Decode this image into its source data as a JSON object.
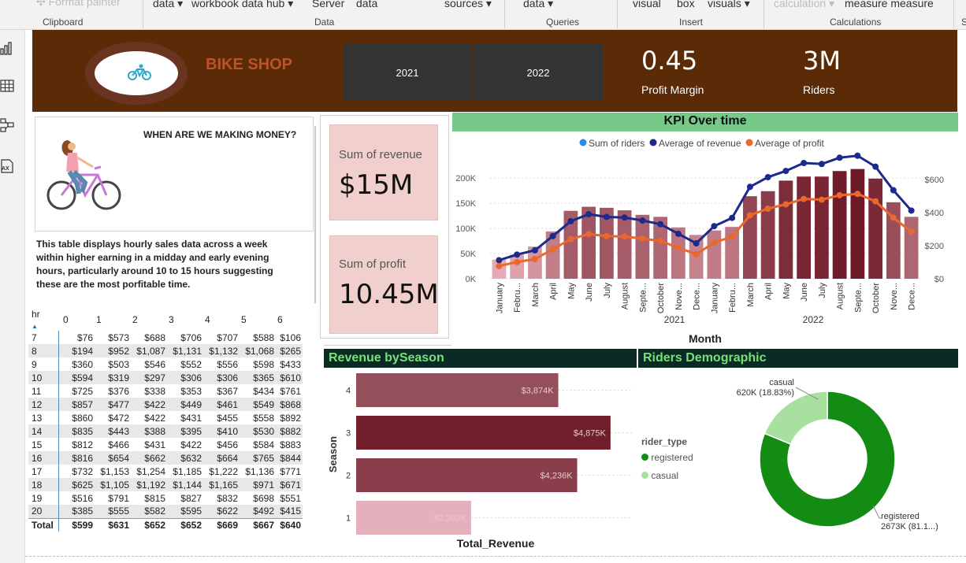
{
  "ribbon": {
    "items": [
      "Format painter",
      "data",
      "workbook",
      "data hub",
      "Server",
      "data",
      "sources",
      "data",
      "visual",
      "box",
      "visuals",
      "calculation",
      "measure",
      "measure"
    ],
    "groups": [
      "Clipboard",
      "Data",
      "Queries",
      "Insert",
      "Calculations",
      "S"
    ]
  },
  "leftbar": {
    "icons": [
      "report-view-icon",
      "table-view-icon",
      "model-view-icon",
      "dax-query-icon"
    ],
    "dax_label": "AX"
  },
  "header": {
    "brand": "BIKE SHOP",
    "years": [
      "2021",
      "2022"
    ],
    "kpis": [
      {
        "value": "0.45",
        "label": "Profit Margin"
      },
      {
        "value": "3M",
        "label": "Riders"
      }
    ]
  },
  "info": {
    "title": "WHEN ARE WE MAKING MONEY?",
    "text": "This table displays hourly sales data across a week within higher earning in a midday and early evening hours, particularly around 10 to 15 hours suggesting these are the most porfitable time."
  },
  "matrix": {
    "hour_header": "hr",
    "day_headers": [
      "0",
      "1",
      "2",
      "3",
      "4",
      "5",
      "6"
    ],
    "rows": [
      {
        "hr": "7",
        "vals": [
          "$76",
          "$573",
          "$688",
          "$706",
          "$707",
          "$588",
          "$106"
        ]
      },
      {
        "hr": "8",
        "vals": [
          "$194",
          "$952",
          "$1,087",
          "$1,131",
          "$1,132",
          "$1,068",
          "$265"
        ]
      },
      {
        "hr": "9",
        "vals": [
          "$360",
          "$503",
          "$546",
          "$552",
          "$556",
          "$598",
          "$433"
        ]
      },
      {
        "hr": "10",
        "vals": [
          "$594",
          "$319",
          "$297",
          "$306",
          "$306",
          "$365",
          "$610"
        ]
      },
      {
        "hr": "11",
        "vals": [
          "$725",
          "$376",
          "$338",
          "$353",
          "$367",
          "$434",
          "$761"
        ]
      },
      {
        "hr": "12",
        "vals": [
          "$857",
          "$477",
          "$422",
          "$449",
          "$461",
          "$549",
          "$868"
        ]
      },
      {
        "hr": "13",
        "vals": [
          "$860",
          "$472",
          "$422",
          "$431",
          "$455",
          "$558",
          "$892"
        ]
      },
      {
        "hr": "14",
        "vals": [
          "$835",
          "$443",
          "$388",
          "$395",
          "$410",
          "$530",
          "$882"
        ]
      },
      {
        "hr": "15",
        "vals": [
          "$812",
          "$466",
          "$431",
          "$422",
          "$456",
          "$584",
          "$883"
        ]
      },
      {
        "hr": "16",
        "vals": [
          "$816",
          "$654",
          "$662",
          "$632",
          "$664",
          "$765",
          "$844"
        ]
      },
      {
        "hr": "17",
        "vals": [
          "$732",
          "$1,153",
          "$1,254",
          "$1,185",
          "$1,222",
          "$1,136",
          "$771"
        ]
      },
      {
        "hr": "18",
        "vals": [
          "$625",
          "$1,105",
          "$1,192",
          "$1,144",
          "$1,165",
          "$971",
          "$671"
        ]
      },
      {
        "hr": "19",
        "vals": [
          "$516",
          "$791",
          "$815",
          "$827",
          "$832",
          "$698",
          "$551"
        ]
      },
      {
        "hr": "20",
        "vals": [
          "$385",
          "$555",
          "$582",
          "$595",
          "$622",
          "$492",
          "$415"
        ]
      }
    ],
    "total": {
      "hr": "Total",
      "vals": [
        "$599",
        "$631",
        "$652",
        "$652",
        "$669",
        "$667",
        "$640"
      ]
    }
  },
  "cards": [
    {
      "label": "Sum of revenue",
      "value": "$15M"
    },
    {
      "label": "Sum of profit",
      "value": "10.45M"
    }
  ],
  "kpi_chart": {
    "title": "KPI Over time",
    "legend": [
      "Sum of riders",
      "Average of revenue",
      "Average of profit"
    ],
    "legend_colors": [
      "#2a8be3",
      "#1c2a8c",
      "#e8682e"
    ],
    "left_ticks": [
      "0K",
      "50K",
      "100K",
      "150K",
      "200K"
    ],
    "right_ticks": [
      "$0",
      "$200",
      "$400",
      "$600"
    ],
    "xlabel": "Month",
    "year_labels": [
      "2021",
      "2022"
    ]
  },
  "season": {
    "title": "Revenue bySeason",
    "ylabel": "Season",
    "xlabel": "Total_Revenue",
    "legend_title": "rider_type",
    "legend": [
      "registered",
      "casual"
    ],
    "legend_colors": [
      "#138c13",
      "#a8e0a0"
    ]
  },
  "demo": {
    "title": "Riders Demographic",
    "casual_label": "casual",
    "casual_value": "620K (18.83%)",
    "registered_label": "registered",
    "registered_value": "2673K (81.1...)"
  },
  "chart_data": [
    {
      "type": "bar",
      "title": "KPI Over time",
      "xlabel": "Month",
      "categories": [
        "January",
        "Febru...",
        "March",
        "April",
        "May",
        "June",
        "July",
        "August",
        "Septe...",
        "October",
        "Nove...",
        "Dece...",
        "January",
        "Febru...",
        "March",
        "April",
        "May",
        "June",
        "July",
        "August",
        "Septe...",
        "October",
        "Nove...",
        "Dece..."
      ],
      "series": [
        {
          "name": "Sum of riders",
          "type": "bar",
          "axis": "left",
          "values": [
            38000,
            48000,
            64000,
            94000,
            135000,
            143000,
            141000,
            136000,
            127000,
            123000,
            102000,
            87000,
            96000,
            103000,
            164000,
            174000,
            195000,
            203000,
            203000,
            214000,
            218000,
            199000,
            152000,
            123000
          ]
        },
        {
          "name": "Average of revenue",
          "type": "line",
          "axis": "right",
          "values": [
            112,
            146,
            172,
            258,
            348,
            390,
            374,
            370,
            352,
            330,
            272,
            214,
            318,
            368,
            556,
            614,
            652,
            700,
            694,
            732,
            744,
            678,
            535,
            412
          ]
        },
        {
          "name": "Average of profit",
          "type": "line",
          "axis": "right",
          "values": [
            77,
            101,
            119,
            178,
            240,
            270,
            258,
            255,
            243,
            228,
            188,
            148,
            219,
            254,
            384,
            424,
            450,
            483,
            478,
            505,
            513,
            468,
            369,
            284
          ]
        }
      ],
      "ylim_left": [
        0,
        230000
      ],
      "ylim_right": [
        0,
        700
      ]
    },
    {
      "type": "bar",
      "title": "Revenue bySeason",
      "orientation": "horizontal",
      "xlabel": "Total_Revenue",
      "ylabel": "Season",
      "categories": [
        "4",
        "3",
        "2",
        "1"
      ],
      "values": [
        3874,
        4875,
        4236,
        2202
      ],
      "labels": [
        "$3,874K",
        "$4,875K",
        "$4,236K",
        "$2,202K"
      ],
      "colors": [
        "#93505c",
        "#6e1f2a",
        "#8a3e4c",
        "#e4b0bc"
      ],
      "xlim": [
        0,
        5300
      ]
    },
    {
      "type": "pie",
      "title": "Riders Demographic",
      "categories": [
        "registered",
        "casual"
      ],
      "values": [
        2673,
        620
      ],
      "colors": [
        "#138c13",
        "#a8e0a0"
      ]
    }
  ]
}
